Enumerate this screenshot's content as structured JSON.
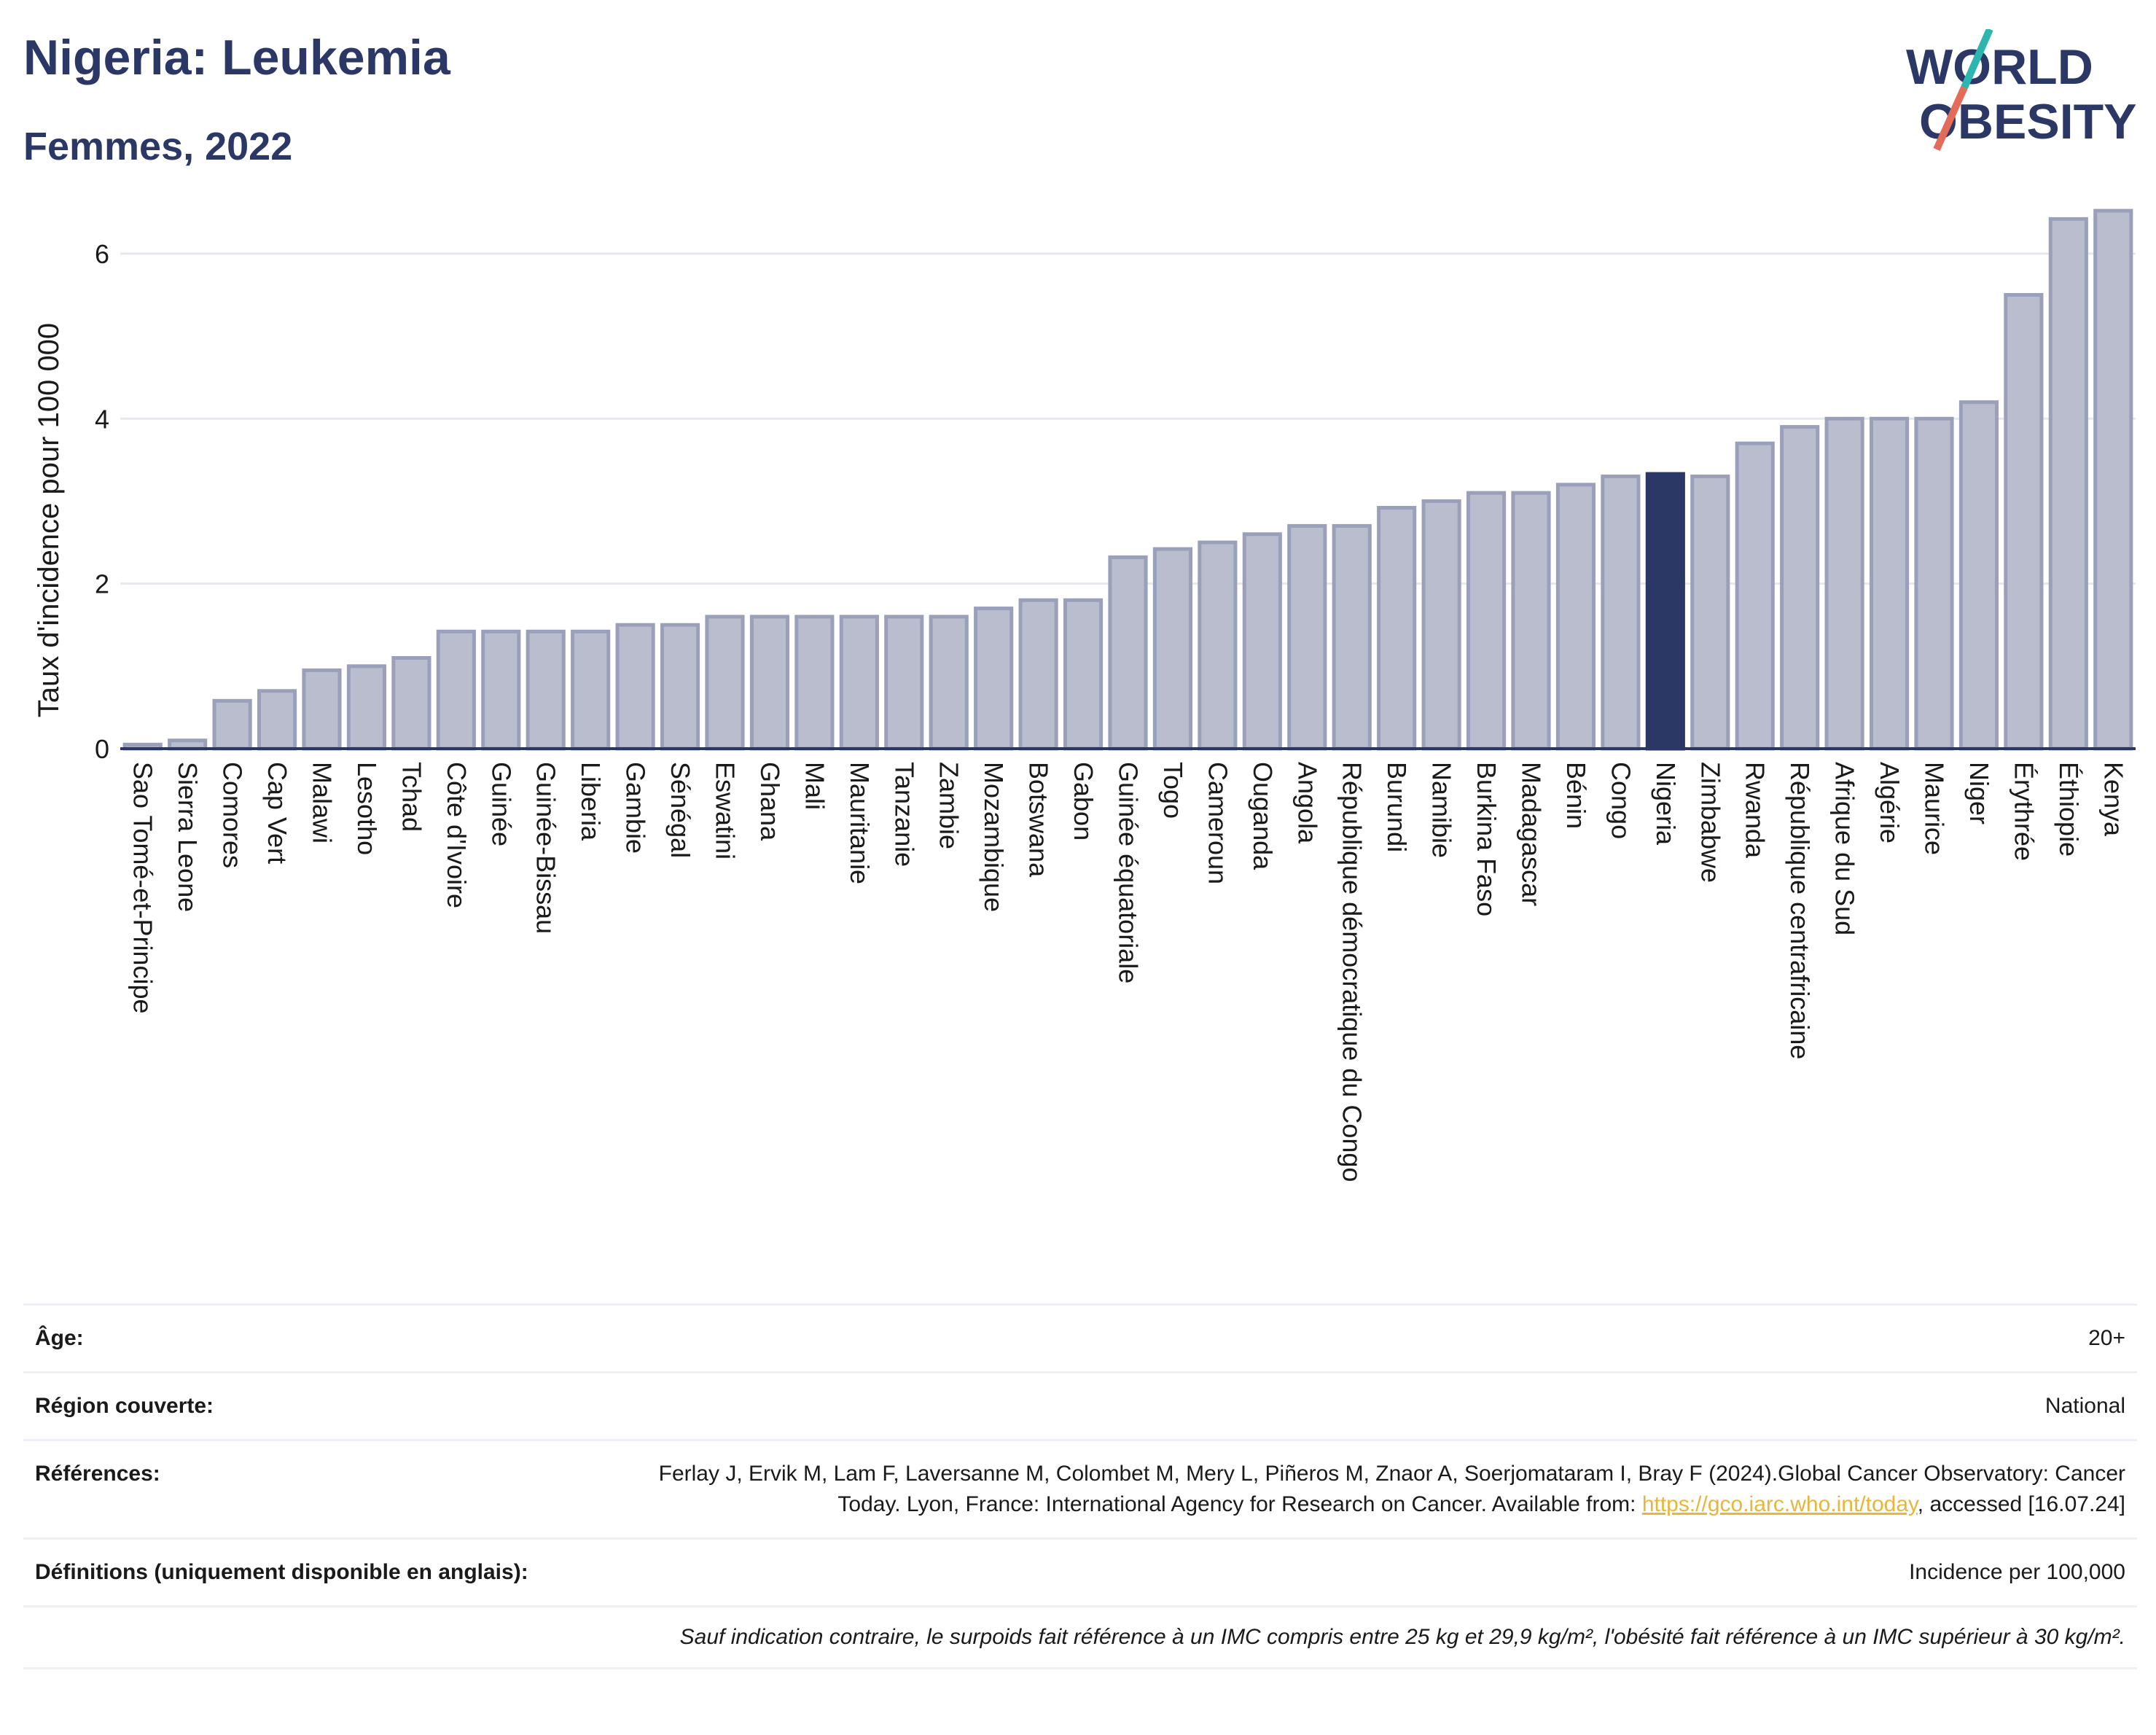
{
  "header": {
    "title": "Nigeria: Leukemia",
    "subtitle": "Femmes, 2022",
    "logo_line1": "WORLD",
    "logo_line2": "OBESITY"
  },
  "chart_data": {
    "type": "bar",
    "ylabel": "Taux d'incidence pour 100 000",
    "ylim": [
      0,
      6.6
    ],
    "yticks": [
      0,
      2,
      4,
      6
    ],
    "grid": true,
    "highlight": "Nigeria",
    "colors": {
      "bar": "#b9bdcd",
      "bar_edge": "#9aa0b9",
      "highlight": "#2b3765",
      "grid": "#e6e8ef",
      "axis": "#2b3765"
    },
    "categories": [
      "Sao Tomé-et-Principe",
      "Sierra Leone",
      "Comores",
      "Cap Vert",
      "Malawi",
      "Lesotho",
      "Tchad",
      "Côte d'Ivoire",
      "Guinée",
      "Guinée-Bissau",
      "Liberia",
      "Gambie",
      "Sénégal",
      "Eswatini",
      "Ghana",
      "Mali",
      "Mauritanie",
      "Tanzanie",
      "Zambie",
      "Mozambique",
      "Botswana",
      "Gabon",
      "Guinée équatoriale",
      "Togo",
      "Cameroun",
      "Ouganda",
      "Angola",
      "République démocratique du Congo",
      "Burundi",
      "Namibie",
      "Burkina Faso",
      "Madagascar",
      "Bénin",
      "Congo",
      "Nigeria",
      "Zimbabwe",
      "Rwanda",
      "République centrafricaine",
      "Afrique du Sud",
      "Algérie",
      "Maurice",
      "Niger",
      "Érythrée",
      "Éthiopie",
      "Kenya"
    ],
    "values": [
      0.05,
      0.1,
      0.58,
      0.7,
      0.95,
      1.0,
      1.1,
      1.42,
      1.42,
      1.42,
      1.42,
      1.5,
      1.5,
      1.6,
      1.6,
      1.6,
      1.6,
      1.6,
      1.6,
      1.7,
      1.8,
      1.8,
      2.32,
      2.42,
      2.5,
      2.6,
      2.7,
      2.7,
      2.92,
      3.0,
      3.1,
      3.1,
      3.2,
      3.3,
      3.33,
      3.3,
      3.7,
      3.9,
      4.0,
      4.0,
      4.0,
      4.2,
      5.5,
      6.42,
      6.52
    ]
  },
  "info": {
    "age_label": "Âge:",
    "age_value": "20+",
    "region_label": "Région couverte:",
    "region_value": "National",
    "refs_label": "Références:",
    "refs_text": "Ferlay J, Ervik M, Lam F, Laversanne M, Colombet M, Mery L, Piñeros M, Znaor A, Soerjomataram I, Bray F (2024).Global Cancer Observatory: Cancer Today. Lyon, France: International Agency for Research on Cancer. Available from: ",
    "refs_link": "https://gco.iarc.who.int/today",
    "refs_tail": ", accessed [16.07.24]",
    "defs_label": "Définitions (uniquement disponible en anglais):",
    "defs_value": "Incidence per 100,000",
    "note": "Sauf indication contraire, le surpoids fait référence à un IMC compris entre 25 kg et 29,9 kg/m², l'obésité fait référence à un IMC supérieur à 30 kg/m²."
  }
}
